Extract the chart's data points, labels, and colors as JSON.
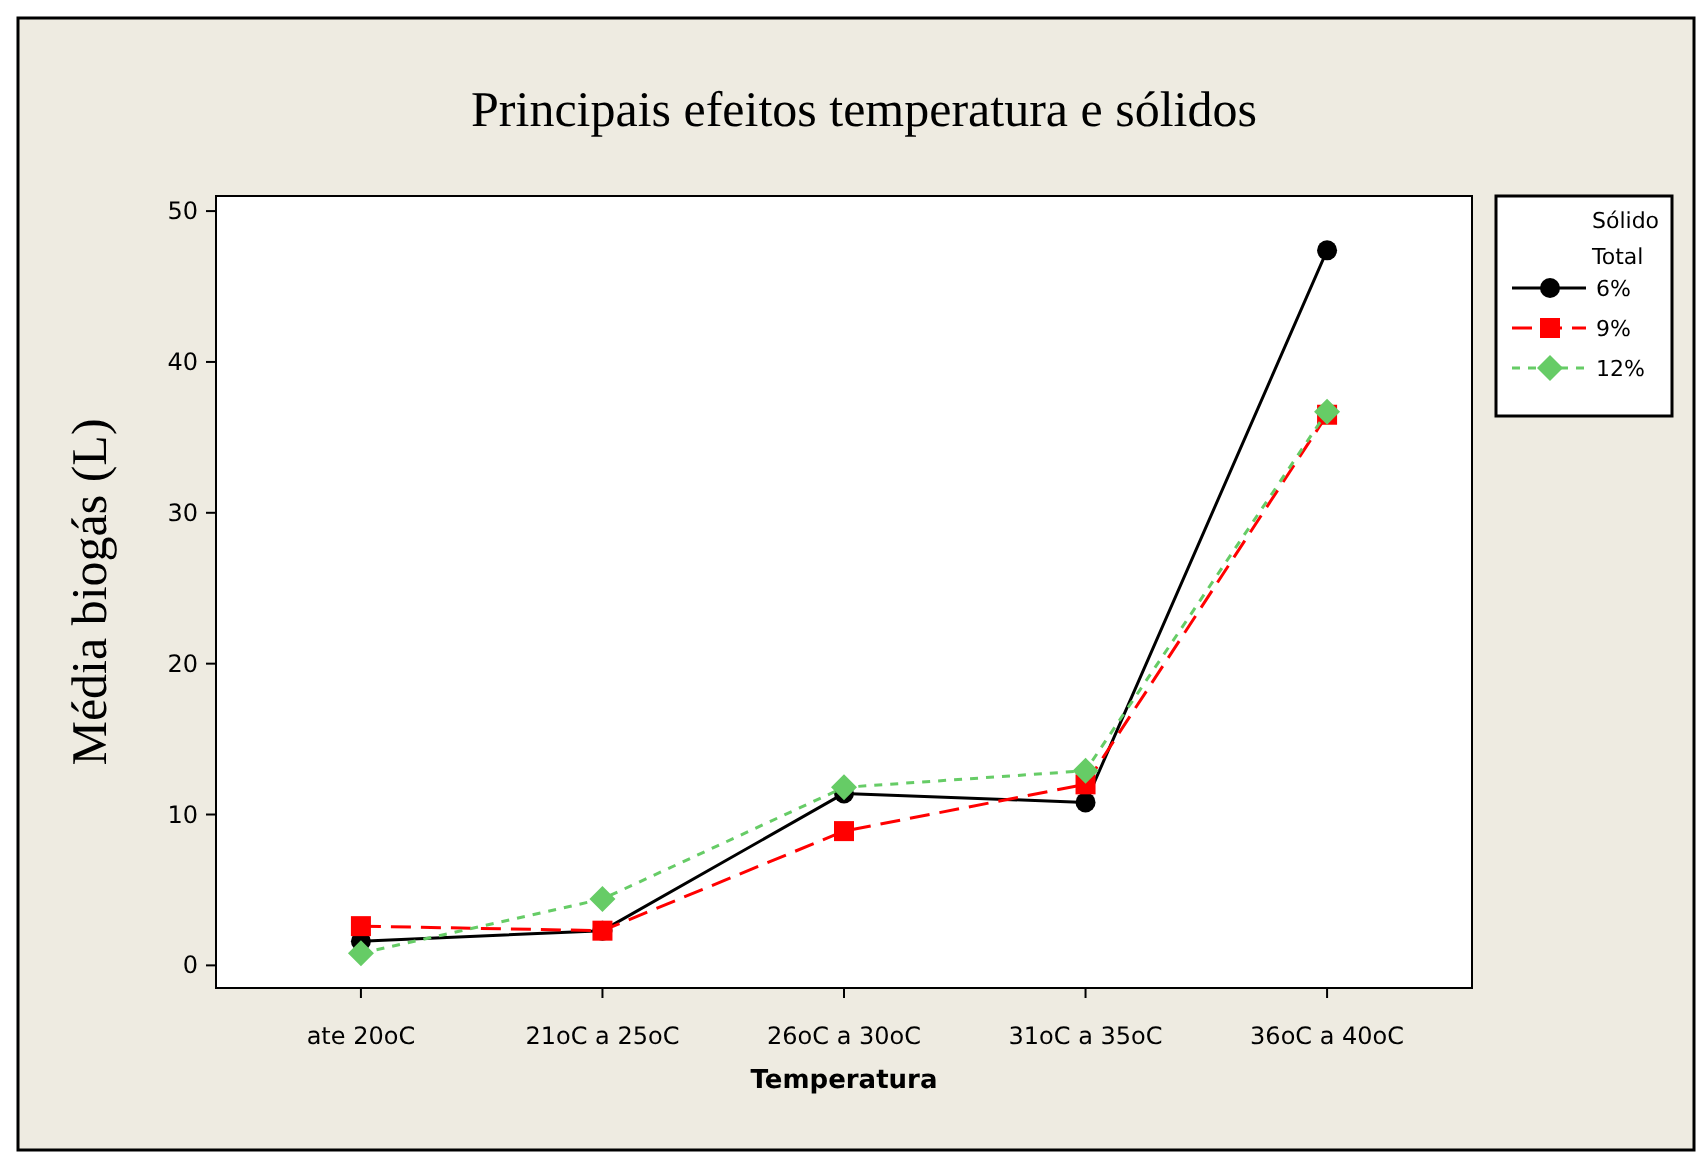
{
  "chart_data": {
    "type": "line",
    "title": "Principais efeitos temperatura e sólidos",
    "xlabel": "Temperatura",
    "ylabel": "Média biogás (L)",
    "legend_title": "Sólido Total",
    "legend": "right",
    "categories": [
      "ate 20oC",
      "21oC a 25oC",
      "26oC a 30oC",
      "31oC a 35oC",
      "36oC a 40oC"
    ],
    "ylim": [
      -1.5,
      51
    ],
    "yticks": [
      0,
      10,
      20,
      30,
      40,
      50
    ],
    "series": [
      {
        "name": "6%",
        "color": "#000000",
        "marker": "circle",
        "line_style": "solid",
        "values": [
          1.6,
          2.3,
          11.4,
          10.8,
          47.4
        ]
      },
      {
        "name": "9%",
        "color": "#ff0000",
        "marker": "square",
        "line_style": "dashed",
        "values": [
          2.6,
          2.3,
          8.9,
          12.0,
          36.5
        ]
      },
      {
        "name": "12%",
        "color": "#66cc66",
        "marker": "diamond",
        "line_style": "dotted",
        "values": [
          0.8,
          4.4,
          11.8,
          12.9,
          36.7
        ]
      }
    ]
  }
}
